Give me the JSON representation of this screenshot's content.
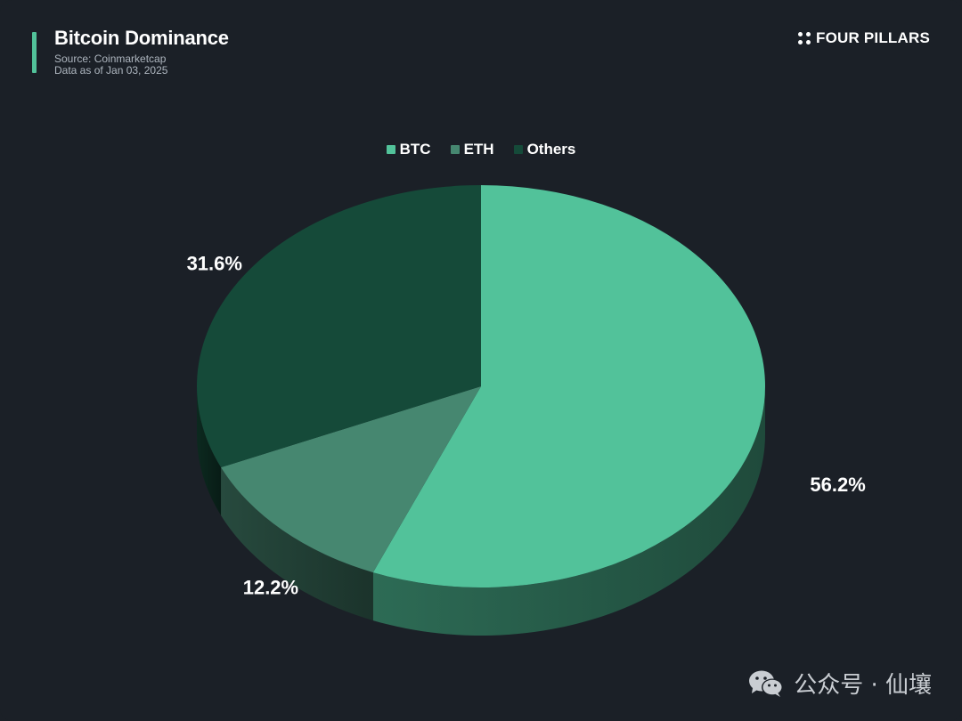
{
  "header": {
    "title": "Bitcoin Dominance",
    "source": "Source: Coinmarketcap",
    "date": "Data as of Jan 03, 2025",
    "brand": "FOUR PILLARS"
  },
  "watermark": {
    "text": "公众号 · 仙壤",
    "icon": "wechat-icon"
  },
  "colors": {
    "background": "#1b2027",
    "accent": "#52c29a"
  },
  "chart_data": {
    "type": "pie",
    "title": "Bitcoin Dominance",
    "legend_position": "top-center",
    "style": "3d",
    "slices": [
      {
        "name": "BTC",
        "value": 56.2,
        "label": "56.2%",
        "color": "#52c29a"
      },
      {
        "name": "ETH",
        "value": 12.2,
        "label": "12.2%",
        "color": "#468770"
      },
      {
        "name": "Others",
        "value": 31.6,
        "label": "31.6%",
        "color": "#154a39"
      }
    ]
  }
}
